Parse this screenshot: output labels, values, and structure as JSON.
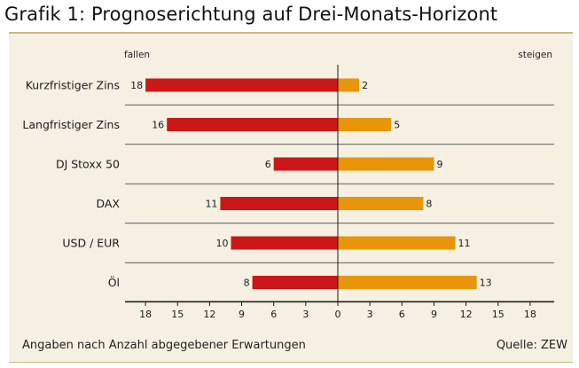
{
  "title": "Grafik 1: Prognoserichtung auf Drei-Monats-Horizont",
  "footer": {
    "note": "Angaben nach Anzahl abgegebener Erwartungen",
    "source": "Quelle: ZEW"
  },
  "colors": {
    "fall": "#cc1719",
    "rise": "#e8950a",
    "background": "#f6f0e2",
    "gridline": "#2a2a2a"
  },
  "chart_data": {
    "type": "bar",
    "orientation": "horizontal-diverging",
    "categories": [
      "Kurzfristiger Zins",
      "Langfristiger Zins",
      "DJ Stoxx 50",
      "DAX",
      "USD / EUR",
      "Öl"
    ],
    "series": [
      {
        "name": "fallen",
        "values": [
          18,
          16,
          6,
          11,
          10,
          8
        ]
      },
      {
        "name": "steigen",
        "values": [
          2,
          5,
          9,
          8,
          11,
          13
        ]
      }
    ],
    "left_label": "fallen",
    "right_label": "steigen",
    "x_ticks": [
      -18,
      -15,
      -12,
      -9,
      -6,
      -3,
      0,
      3,
      6,
      9,
      12,
      15,
      18
    ],
    "x_tick_labels": [
      "18",
      "15",
      "12",
      "9",
      "6",
      "3",
      "0",
      "3",
      "6",
      "9",
      "12",
      "15",
      "18"
    ],
    "xlim": [
      -20,
      20
    ]
  }
}
